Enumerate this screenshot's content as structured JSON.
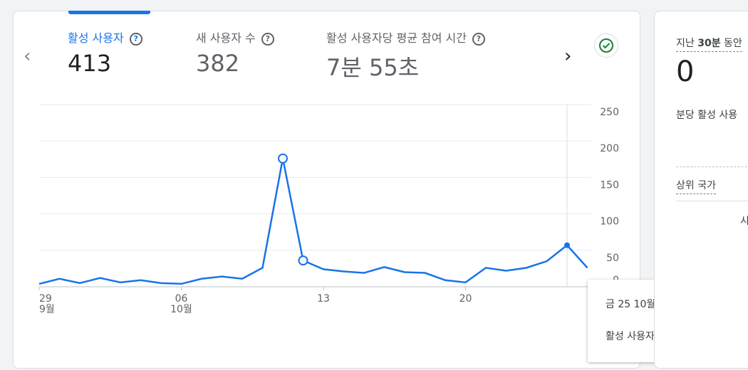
{
  "metrics": [
    {
      "label": "활성 사용자",
      "value": 413
    },
    {
      "label": "새 사용자 수",
      "value": 382
    },
    {
      "label": "활성 사용자당 평균 참여 시간",
      "value": "7분 55초"
    }
  ],
  "chart_data": {
    "type": "line",
    "categories": [
      "29",
      null,
      null,
      null,
      null,
      null,
      null,
      "06",
      null,
      null,
      null,
      null,
      null,
      null,
      "13",
      null,
      null,
      null,
      null,
      null,
      null,
      "20",
      null,
      null,
      null,
      null,
      null,
      null
    ],
    "category_months": [
      "9월",
      null,
      null,
      null,
      null,
      null,
      null,
      "10월",
      null,
      null,
      null,
      null,
      null,
      null,
      null,
      null,
      null,
      null,
      null,
      null,
      null,
      null,
      null,
      null,
      null,
      null,
      null,
      null
    ],
    "series": [
      {
        "name": "활성 사용자",
        "color": "#1a73e8",
        "values": [
          4,
          11,
          5,
          12,
          6,
          9,
          5,
          4,
          11,
          14,
          11,
          26,
          176,
          36,
          24,
          21,
          19,
          27,
          20,
          19,
          9,
          6,
          26,
          22,
          26,
          35,
          57,
          26
        ]
      }
    ],
    "ylim": [
      0,
      250
    ],
    "yticks": [
      0,
      50,
      100,
      150,
      200,
      250
    ],
    "grid": true
  },
  "tooltip": {
    "date": "금 25 10월"
  },
  "realtime": {
    "title_prefix": "지난",
    "title_bold": "30분",
    "title_suffix": "동안",
    "value": "0",
    "per_minute": "분당 활성 사용",
    "top_countries": "상위 국가",
    "table_header": "시"
  }
}
